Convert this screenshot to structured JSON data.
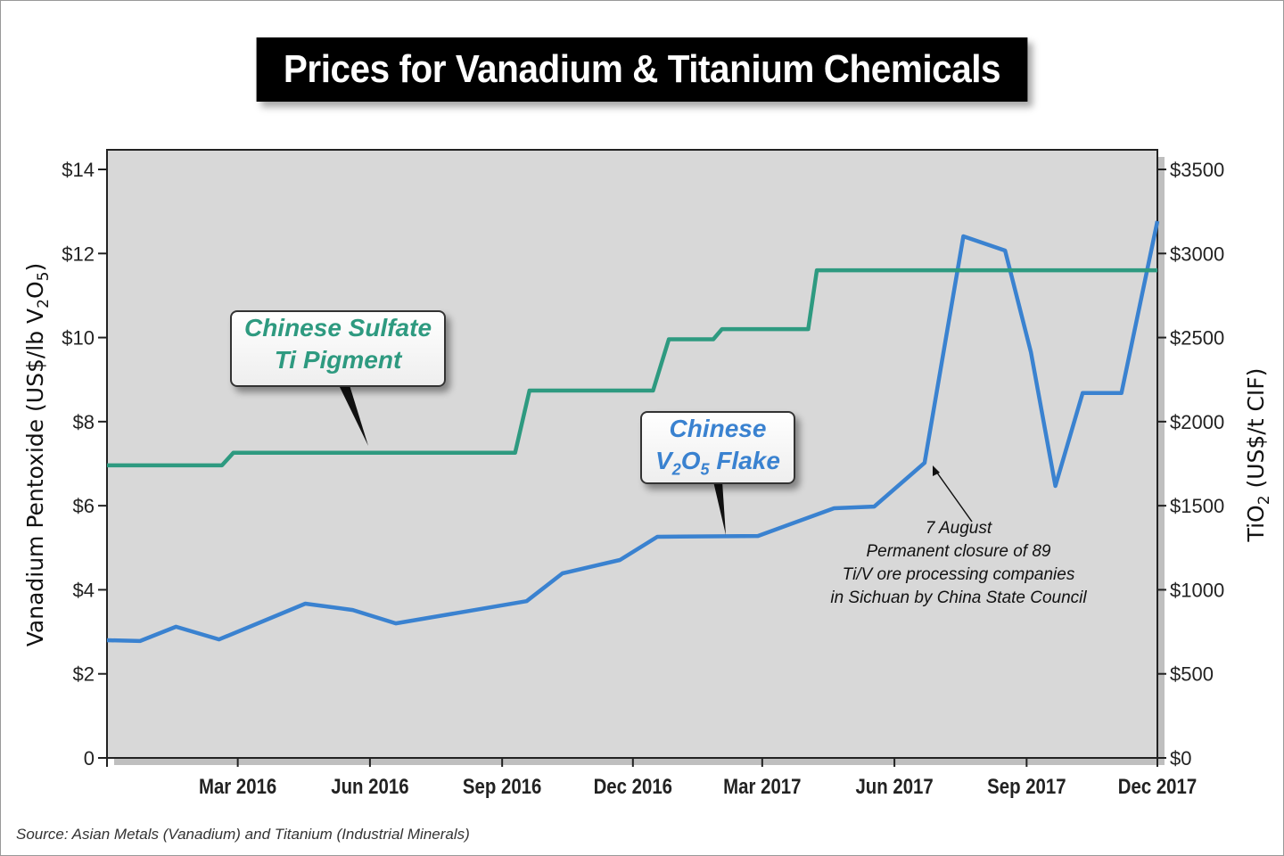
{
  "chart_data": {
    "type": "line",
    "title": "Prices for Vanadium & Titanium Chemicals",
    "ylabel_left": "Vanadium Pentoxide (US$/lb V2O5)",
    "ylabel_right": "TiO2 (US$/t CIF)",
    "ylim_left": [
      0,
      14
    ],
    "ylim_right": [
      0,
      3500
    ],
    "yticks_left": [
      "0",
      "$2",
      "$4",
      "$6",
      "$8",
      "$10",
      "$12",
      "$14"
    ],
    "yticks_right": [
      "$0",
      "$500",
      "$1000",
      "$1500",
      "$2000",
      "$2500",
      "$3000",
      "$3500"
    ],
    "xlim": [
      "2015-12-01",
      "2017-12-01"
    ],
    "xticks": [
      {
        "date": "2016-03-01",
        "label": "Mar 2016"
      },
      {
        "date": "2016-06-01",
        "label": "Jun 2016"
      },
      {
        "date": "2016-09-01",
        "label": "Sep 2016"
      },
      {
        "date": "2016-12-01",
        "label": "Dec 2016"
      },
      {
        "date": "2017-03-01",
        "label": "Mar 2017"
      },
      {
        "date": "2017-06-01",
        "label": "Jun 2017"
      },
      {
        "date": "2017-09-01",
        "label": "Sep 2017"
      },
      {
        "date": "2017-12-01",
        "label": "Dec 2017"
      }
    ],
    "grid": false,
    "series": [
      {
        "name": "Chinese V2O5 Flake",
        "axis": "left",
        "color": "#3a82d0",
        "x": [
          "2015-12-01",
          "2015-12-24",
          "2016-01-18",
          "2016-02-17",
          "2016-04-17",
          "2016-05-20",
          "2016-06-19",
          "2016-09-18",
          "2016-10-13",
          "2016-11-22",
          "2016-12-18",
          "2017-02-26",
          "2017-04-20",
          "2017-05-18",
          "2017-06-22",
          "2017-07-19",
          "2017-08-17",
          "2017-09-04",
          "2017-09-21",
          "2017-10-10",
          "2017-11-06",
          "2017-12-01"
        ],
        "y": [
          2.8,
          2.78,
          3.12,
          2.82,
          3.67,
          3.52,
          3.2,
          3.73,
          4.39,
          4.71,
          5.26,
          5.28,
          5.94,
          5.98,
          7.02,
          12.41,
          12.07,
          9.65,
          6.47,
          8.68,
          8.68,
          12.77
        ]
      },
      {
        "name": "Chinese Sulfate Ti Pigment",
        "axis": "right",
        "color": "#2e9a80",
        "x": [
          "2015-12-01",
          "2016-02-19",
          "2016-02-27",
          "2016-09-10",
          "2016-09-20",
          "2016-12-15",
          "2016-12-26",
          "2017-01-26",
          "2017-02-01",
          "2017-04-02",
          "2017-04-08",
          "2017-12-01"
        ],
        "y": [
          1740,
          1740,
          1815,
          1815,
          2185,
          2185,
          2490,
          2490,
          2550,
          2550,
          2900,
          2900
        ]
      }
    ],
    "annotations": {
      "ti_label_line1": "Chinese Sulfate",
      "ti_label_line2": "Ti Pigment",
      "v_label_line1": "Chinese",
      "v_label_line2": "V2O5 Flake",
      "note_line1": "7 August",
      "note_line2": "Permanent closure of 89",
      "note_line3": "Ti/V ore processing companies",
      "note_line4": "in Sichuan by China State Council"
    },
    "source": "Source: Asian Metals (Vanadium) and Titanium (Industrial Minerals)"
  }
}
